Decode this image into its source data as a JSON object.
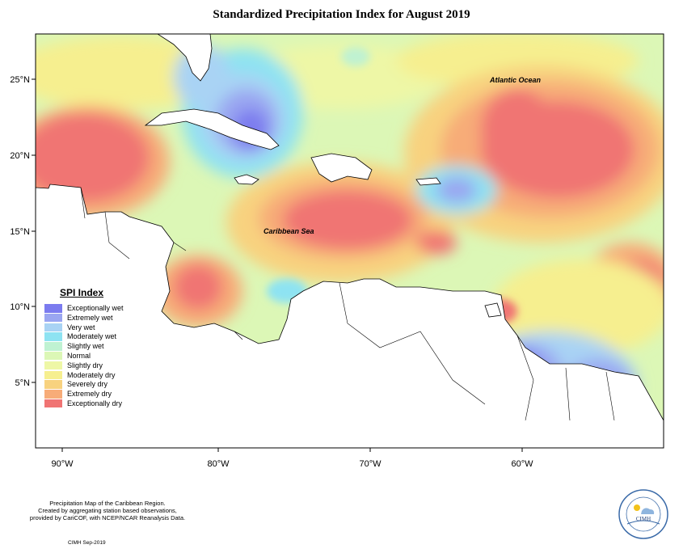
{
  "title": "Standardized Precipitation Index for August 2019",
  "map": {
    "region": "Caribbean",
    "longitude_ticks": [
      "90°W",
      "80°W",
      "70°W",
      "60°W"
    ],
    "latitude_ticks": [
      "25°N",
      "20°N",
      "15°N",
      "10°N",
      "5°N"
    ],
    "place_labels": {
      "atlantic": "Atlantic Ocean",
      "caribbean": "Caribbean Sea"
    }
  },
  "legend": {
    "title": "SPI Index",
    "items": [
      {
        "label": "Exceptionally wet",
        "color": "#7b7bef"
      },
      {
        "label": "Extremely wet",
        "color": "#9aa6f1"
      },
      {
        "label": "Very wet",
        "color": "#a9d3f4"
      },
      {
        "label": "Moderately wet",
        "color": "#8ee3f2"
      },
      {
        "label": "Slightly wet",
        "color": "#bff2d2"
      },
      {
        "label": "Normal",
        "color": "#dcf7b6"
      },
      {
        "label": "Slightly dry",
        "color": "#eef7a6"
      },
      {
        "label": "Moderately dry",
        "color": "#f6ef8f"
      },
      {
        "label": "Severely dry",
        "color": "#f8d27f"
      },
      {
        "label": "Extremely dry",
        "color": "#f7ac78"
      },
      {
        "label": "Exceptionally dry",
        "color": "#f07473"
      }
    ]
  },
  "footer": {
    "line1": "Precipitation Map of the Caribbean Region.",
    "line2": "Created by aggregating station based observations,",
    "line3": "provided by CariCOF, with NCEP/NCAR Reanalysis Data.",
    "credit": "CIMH Sep-2019"
  },
  "logo": {
    "name": "CIMH"
  }
}
